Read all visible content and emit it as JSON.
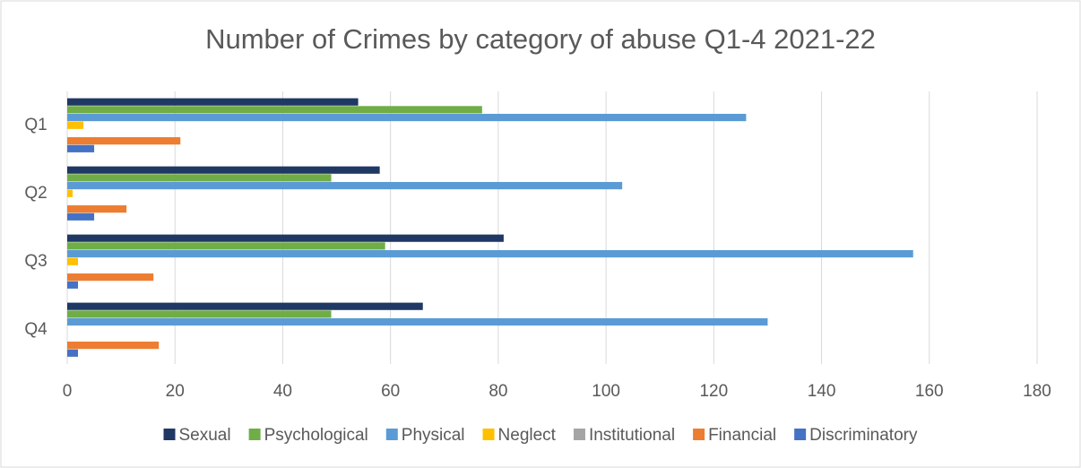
{
  "chart_data": {
    "type": "bar",
    "orientation": "horizontal",
    "title": "Number of Crimes by category of abuse Q1-4 2021-22",
    "categories": [
      "Q1",
      "Q2",
      "Q3",
      "Q4"
    ],
    "series": [
      {
        "name": "Sexual",
        "color": "#203864",
        "values": [
          54,
          58,
          81,
          66
        ]
      },
      {
        "name": "Psychological",
        "color": "#70ad47",
        "values": [
          77,
          49,
          59,
          49
        ]
      },
      {
        "name": "Physical",
        "color": "#5b9bd5",
        "values": [
          126,
          103,
          157,
          130
        ]
      },
      {
        "name": "Neglect",
        "color": "#ffc000",
        "values": [
          3,
          1,
          2,
          0
        ]
      },
      {
        "name": "Institutional",
        "color": "#a5a5a5",
        "values": [
          0,
          0,
          0,
          0
        ]
      },
      {
        "name": "Financial",
        "color": "#ed7d31",
        "values": [
          21,
          11,
          16,
          17
        ]
      },
      {
        "name": "Discriminatory",
        "color": "#4472c4",
        "values": [
          5,
          5,
          2,
          2
        ]
      }
    ],
    "xlim": [
      0,
      180
    ],
    "xticks": [
      0,
      20,
      40,
      60,
      80,
      100,
      120,
      140,
      160,
      180
    ],
    "grid": true,
    "legend": "bottom"
  }
}
